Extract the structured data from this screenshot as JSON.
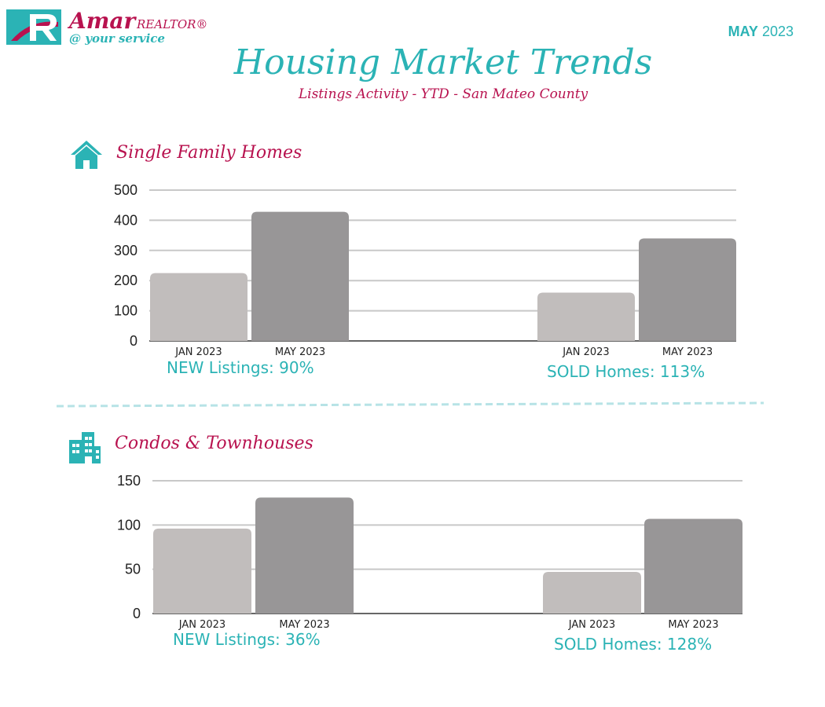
{
  "header": {
    "brand_name": "Amar",
    "brand_suffix": "REALTOR®",
    "tagline": "@ your service",
    "month": "MAY",
    "year": "2023",
    "title": "Housing Market Trends",
    "subtitle": "Listings Activity - YTD - San Mateo County"
  },
  "colors": {
    "teal": "#2bb3b5",
    "magenta": "#b8124f",
    "bar_light": "#c1bdbc",
    "bar_dark": "#989697",
    "grid": "#c8c8c8"
  },
  "sections": [
    {
      "title": "Single Family Homes",
      "icon": "house-icon"
    },
    {
      "title": "Condos & Townhouses",
      "icon": "building-icon"
    }
  ],
  "chart_data": [
    {
      "type": "bar",
      "title": "Single Family Homes",
      "ylim": [
        0,
        500
      ],
      "yticks": [
        0,
        100,
        200,
        300,
        400,
        500
      ],
      "groups": [
        {
          "name": "NEW Listings",
          "categories": [
            "JAN 2023",
            "MAY 2023"
          ],
          "values": [
            225,
            428
          ],
          "label": "NEW Listings: 90%"
        },
        {
          "name": "SOLD Homes",
          "categories": [
            "JAN 2023",
            "MAY 2023"
          ],
          "values": [
            160,
            340
          ],
          "label": "SOLD Homes: 113%"
        }
      ]
    },
    {
      "type": "bar",
      "title": "Condos & Townhouses",
      "ylim": [
        0,
        150
      ],
      "yticks": [
        0,
        50,
        100,
        150
      ],
      "groups": [
        {
          "name": "NEW Listings",
          "categories": [
            "JAN 2023",
            "MAY 2023"
          ],
          "values": [
            96,
            131
          ],
          "label": "NEW Listings: 36%"
        },
        {
          "name": "SOLD Homes",
          "categories": [
            "JAN 2023",
            "MAY 2023"
          ],
          "values": [
            47,
            107
          ],
          "label": "SOLD Homes: 128%"
        }
      ]
    }
  ]
}
